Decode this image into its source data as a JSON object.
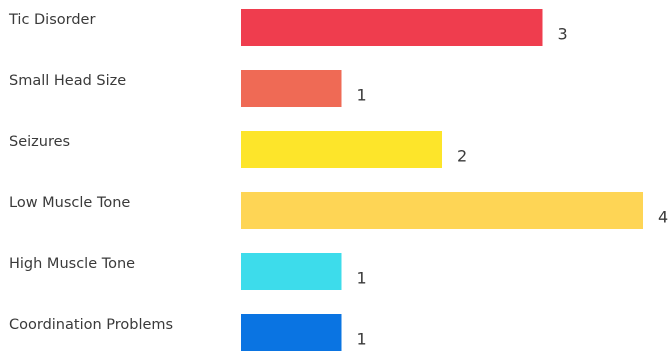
{
  "chart_data": {
    "type": "bar",
    "orientation": "horizontal",
    "categories": [
      "Tic Disorder",
      "Small Head Size",
      "Seizures",
      "Low Muscle Tone",
      "High Muscle Tone",
      "Coordination Problems"
    ],
    "values": [
      3,
      1,
      2,
      4,
      1,
      1
    ],
    "colors": [
      "#ef3d4e",
      "#ef6a55",
      "#fde52a",
      "#fed555",
      "#3ddceb",
      "#0a74e2"
    ],
    "title": "",
    "xlabel": "",
    "ylabel": "",
    "xlim": [
      0,
      4
    ],
    "grid": false,
    "legend": false,
    "data_labels": true
  }
}
